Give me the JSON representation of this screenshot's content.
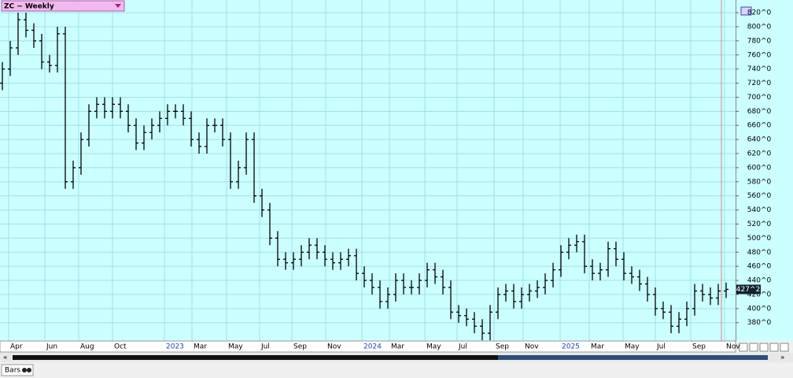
{
  "chart_data": {
    "type": "ohlc",
    "title": "ZC ~ Weekly",
    "status_label": "Bars",
    "series": [
      {
        "name": "ZC",
        "color": "#000000",
        "open": [
          720,
          740,
          770,
          810,
          795,
          780,
          750,
          745,
          790,
          580,
          600,
          640,
          680,
          690,
          680,
          690,
          680,
          660,
          635,
          650,
          660,
          670,
          680,
          680,
          670,
          640,
          630,
          660,
          660,
          640,
          580,
          600,
          640,
          560,
          540,
          500,
          470,
          465,
          470,
          480,
          490,
          480,
          470,
          465,
          470,
          475,
          450,
          440,
          430,
          410,
          420,
          440,
          430,
          430,
          440,
          455,
          445,
          430,
          395,
          390,
          385,
          375,
          365,
          395,
          420,
          425,
          410,
          420,
          425,
          430,
          440,
          455,
          480,
          490,
          495,
          460,
          450,
          455,
          485,
          470,
          450,
          445,
          435,
          420,
          400,
          395,
          375,
          385,
          400,
          425,
          420,
          415,
          425
        ],
        "high": [
          750,
          780,
          820,
          820,
          805,
          790,
          760,
          800,
          800,
          610,
          650,
          690,
          700,
          700,
          700,
          700,
          690,
          670,
          660,
          670,
          680,
          690,
          690,
          690,
          680,
          650,
          670,
          670,
          670,
          650,
          610,
          650,
          650,
          570,
          550,
          510,
          480,
          480,
          490,
          500,
          500,
          490,
          480,
          480,
          485,
          485,
          460,
          450,
          440,
          430,
          450,
          450,
          440,
          450,
          465,
          465,
          455,
          440,
          405,
          400,
          395,
          385,
          405,
          430,
          435,
          435,
          430,
          435,
          440,
          450,
          465,
          490,
          500,
          505,
          505,
          470,
          465,
          495,
          495,
          480,
          460,
          455,
          445,
          430,
          410,
          405,
          395,
          410,
          435,
          435,
          430,
          435,
          437
        ],
        "low": [
          710,
          730,
          760,
          785,
          770,
          740,
          735,
          735,
          570,
          570,
          590,
          630,
          670,
          670,
          670,
          670,
          650,
          625,
          625,
          640,
          650,
          660,
          670,
          660,
          630,
          620,
          620,
          650,
          630,
          570,
          570,
          590,
          550,
          530,
          490,
          460,
          455,
          455,
          460,
          470,
          470,
          460,
          455,
          455,
          460,
          440,
          430,
          420,
          400,
          400,
          410,
          420,
          420,
          420,
          430,
          435,
          420,
          385,
          380,
          375,
          365,
          355,
          355,
          385,
          410,
          400,
          400,
          410,
          415,
          420,
          430,
          445,
          470,
          480,
          450,
          440,
          440,
          445,
          460,
          440,
          435,
          425,
          410,
          390,
          385,
          365,
          365,
          375,
          390,
          410,
          405,
          405,
          415
        ],
        "close": [
          740,
          770,
          810,
          795,
          780,
          750,
          745,
          790,
          580,
          600,
          640,
          680,
          690,
          680,
          690,
          680,
          660,
          635,
          650,
          660,
          670,
          680,
          680,
          670,
          640,
          630,
          660,
          660,
          640,
          580,
          600,
          640,
          560,
          540,
          500,
          470,
          465,
          470,
          480,
          490,
          480,
          470,
          465,
          470,
          475,
          450,
          440,
          430,
          410,
          420,
          440,
          430,
          430,
          440,
          455,
          445,
          430,
          395,
          390,
          385,
          375,
          365,
          395,
          420,
          425,
          410,
          420,
          425,
          430,
          440,
          455,
          480,
          490,
          495,
          460,
          450,
          455,
          485,
          470,
          450,
          445,
          435,
          420,
          400,
          395,
          375,
          385,
          400,
          425,
          420,
          415,
          425,
          427.25
        ]
      }
    ],
    "last_price": {
      "value": 427.25,
      "label": "427^2"
    },
    "xlim": [
      -0.3,
      93.2
    ],
    "xticks": [
      {
        "value": 0.8,
        "label": "Apr"
      },
      {
        "value": 5.4,
        "label": "Jun"
      },
      {
        "value": 9.7,
        "label": "Aug"
      },
      {
        "value": 14,
        "label": "Oct"
      },
      {
        "value": 20.6,
        "label": "2023"
      },
      {
        "value": 24.1,
        "label": "Mar"
      },
      {
        "value": 28.5,
        "label": "May"
      },
      {
        "value": 32.7,
        "label": "Jul"
      },
      {
        "value": 36.8,
        "label": "Sep"
      },
      {
        "value": 41.1,
        "label": "Nov"
      },
      {
        "value": 45.7,
        "label": "2024"
      },
      {
        "value": 49.2,
        "label": "Mar"
      },
      {
        "value": 53.7,
        "label": "May"
      },
      {
        "value": 57.8,
        "label": "Jul"
      },
      {
        "value": 62.5,
        "label": "Sep"
      },
      {
        "value": 66.2,
        "label": "Nov"
      },
      {
        "value": 70.9,
        "label": "2025"
      },
      {
        "value": 74.6,
        "label": "Mar"
      },
      {
        "value": 78.9,
        "label": "May"
      },
      {
        "value": 83,
        "label": "Jul"
      },
      {
        "value": 87.5,
        "label": "Sep"
      },
      {
        "value": 91.8,
        "label": "Nov"
      }
    ],
    "ylim": [
      354,
      838
    ],
    "yticks": [
      {
        "value": 380,
        "label": "380^0"
      },
      {
        "value": 400,
        "label": "400^0"
      },
      {
        "value": 420,
        "label": "420^0"
      },
      {
        "value": 440,
        "label": "440^0"
      },
      {
        "value": 460,
        "label": "460^0"
      },
      {
        "value": 480,
        "label": "480^0"
      },
      {
        "value": 500,
        "label": "500^0"
      },
      {
        "value": 520,
        "label": "520^0"
      },
      {
        "value": 540,
        "label": "540^0"
      },
      {
        "value": 560,
        "label": "560^0"
      },
      {
        "value": 580,
        "label": "580^0"
      },
      {
        "value": 600,
        "label": "600^0"
      },
      {
        "value": 620,
        "label": "620^0"
      },
      {
        "value": 640,
        "label": "640^0"
      },
      {
        "value": 660,
        "label": "660^0"
      },
      {
        "value": 680,
        "label": "680^0"
      },
      {
        "value": 700,
        "label": "700^0"
      },
      {
        "value": 720,
        "label": "720^0"
      },
      {
        "value": 740,
        "label": "740^0"
      },
      {
        "value": 760,
        "label": "760^0"
      },
      {
        "value": 780,
        "label": "780^0"
      },
      {
        "value": 800,
        "label": "800^0"
      },
      {
        "value": 820,
        "label": "820^0"
      }
    ],
    "grid": true
  }
}
